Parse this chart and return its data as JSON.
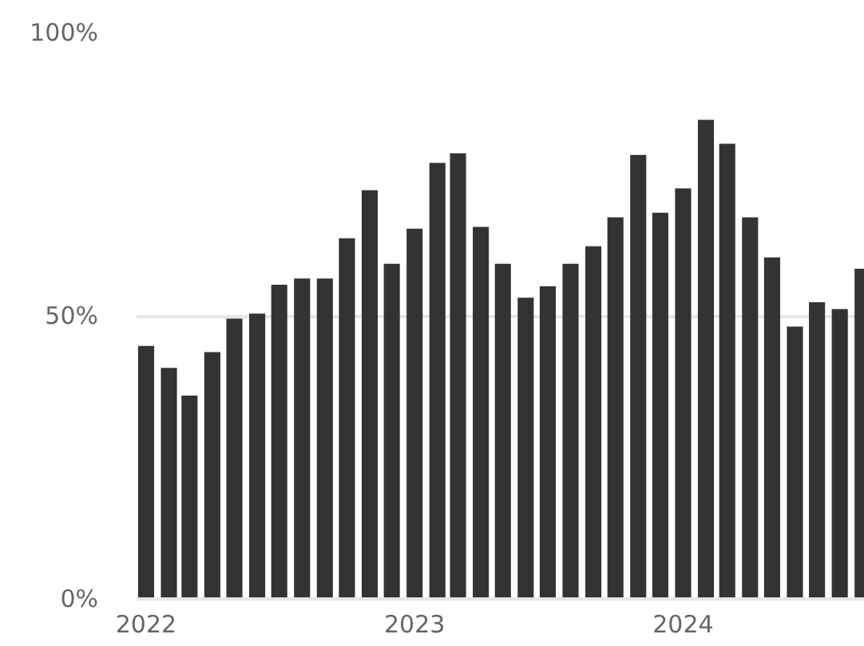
{
  "chart_data": {
    "type": "bar",
    "x": [
      "2022-01",
      "2022-02",
      "2022-03",
      "2022-04",
      "2022-05",
      "2022-06",
      "2022-07",
      "2022-08",
      "2022-09",
      "2022-10",
      "2022-11",
      "2022-12",
      "2023-01",
      "2023-02",
      "2023-03",
      "2023-04",
      "2023-05",
      "2023-06",
      "2023-07",
      "2023-08",
      "2023-09",
      "2023-10",
      "2023-11",
      "2023-12",
      "2024-01",
      "2024-02",
      "2024-03",
      "2024-04",
      "2024-05",
      "2024-06",
      "2024-07",
      "2024-08",
      "2024-09"
    ],
    "values": [
      44.7,
      40.8,
      35.9,
      43.6,
      49.5,
      50.4,
      55.5,
      56.6,
      56.6,
      63.7,
      72.2,
      59.2,
      65.4,
      77.0,
      78.7,
      65.7,
      59.2,
      53.2,
      55.2,
      59.2,
      62.3,
      67.4,
      78.4,
      68.2,
      72.5,
      84.6,
      80.4,
      67.4,
      60.3,
      48.1,
      52.4,
      51.2,
      58.3
    ],
    "color": "#333333",
    "xlim": [
      "2021-12-19",
      "2024-09-04"
    ],
    "xticks": [
      {
        "value": "2022-01",
        "label": "2022"
      },
      {
        "value": "2023-01",
        "label": "2023"
      },
      {
        "value": "2024-01",
        "label": "2024"
      }
    ],
    "ylim": [
      0,
      100
    ],
    "yticks": [
      {
        "value": 0,
        "label": "0%"
      },
      {
        "value": 50,
        "label": "50%"
      },
      {
        "value": 100,
        "label": "100%"
      }
    ],
    "grid": "y"
  }
}
